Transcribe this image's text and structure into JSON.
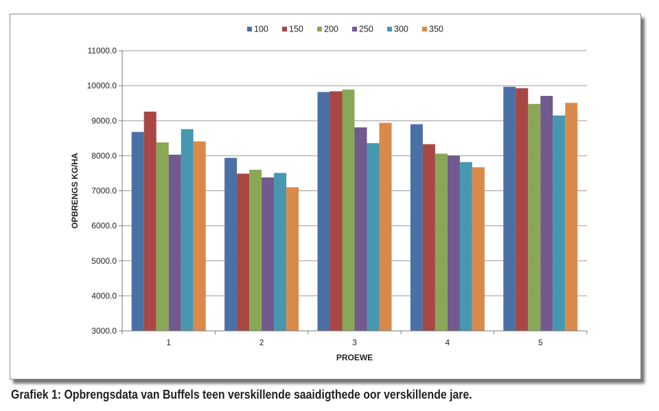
{
  "caption": "Grafiek 1: Opbrengsdata van Buffels teen verskillende saaidigthede oor verskillende jare.",
  "chart_data": {
    "type": "bar",
    "categories": [
      "1",
      "2",
      "3",
      "4",
      "5"
    ],
    "xlabel": "PROEWE",
    "ylabel": "OPBRENGS KG/HA",
    "ylim": [
      3000,
      11000
    ],
    "yticks": [
      "3000.0",
      "4000.0",
      "5000.0",
      "6000.0",
      "7000.0",
      "8000.0",
      "9000.0",
      "10000.0",
      "11000.0"
    ],
    "grid": true,
    "legend_position": "top",
    "series": [
      {
        "name": "100",
        "color": "#4A70A6",
        "values": [
          8680,
          7940,
          9820,
          8900,
          9970
        ]
      },
      {
        "name": "150",
        "color": "#A84744",
        "values": [
          9260,
          7490,
          9840,
          8330,
          9930
        ]
      },
      {
        "name": "200",
        "color": "#8AA756",
        "values": [
          8380,
          7600,
          9890,
          8060,
          9480
        ]
      },
      {
        "name": "250",
        "color": "#72598E",
        "values": [
          8030,
          7380,
          8810,
          8010,
          9710
        ]
      },
      {
        "name": "300",
        "color": "#4797B0",
        "values": [
          8760,
          7510,
          8360,
          7820,
          9150
        ]
      },
      {
        "name": "350",
        "color": "#D98A4A",
        "values": [
          8410,
          7100,
          8940,
          7670,
          9510
        ]
      }
    ]
  }
}
